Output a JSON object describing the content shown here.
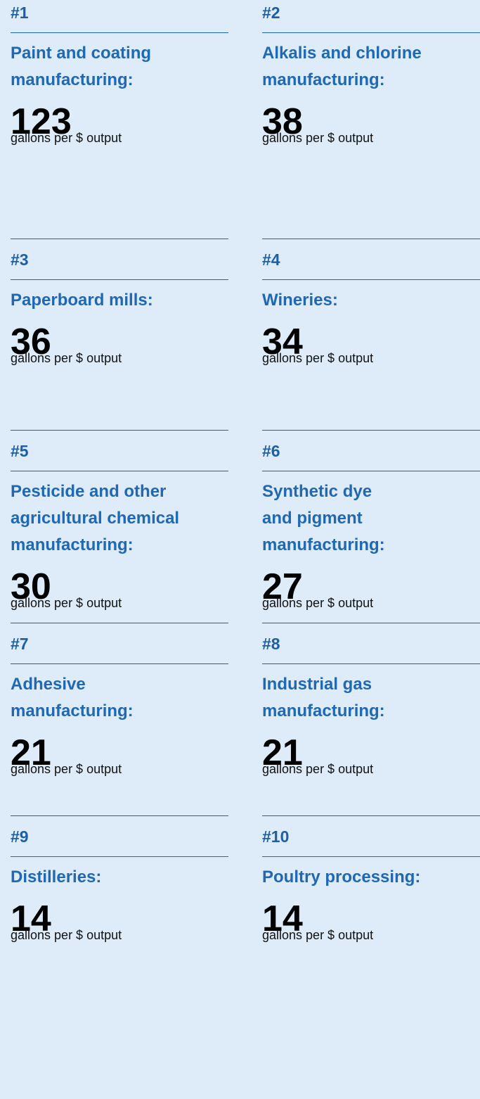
{
  "items": [
    {
      "rank": "#1",
      "title_lines": [
        "Paint and coating",
        "manufacturing:"
      ],
      "value": 123,
      "unit": "gallons per $ output"
    },
    {
      "rank": "#2",
      "title_lines": [
        "Alkalis and chlorine",
        "manufacturing:"
      ],
      "value": 38,
      "unit": "gallons per $ output"
    },
    {
      "rank": "#3",
      "title_lines": [
        "Paperboard mills:"
      ],
      "value": 36,
      "unit": "gallons per $ output"
    },
    {
      "rank": "#4",
      "title_lines": [
        "Wineries:"
      ],
      "value": 34,
      "unit": "gallons per $ output"
    },
    {
      "rank": "#5",
      "title_lines": [
        "Pesticide and other",
        "agricultural chemical",
        "manufacturing:"
      ],
      "value": 30,
      "unit": "gallons per $ output"
    },
    {
      "rank": "#6",
      "title_lines": [
        "Synthetic dye",
        "and pigment",
        "manufacturing:"
      ],
      "value": 27,
      "unit": "gallons per $ output"
    },
    {
      "rank": "#7",
      "title_lines": [
        "Adhesive",
        "manufacturing:"
      ],
      "value": 21,
      "unit": "gallons per $ output"
    },
    {
      "rank": "#8",
      "title_lines": [
        "Industrial gas",
        "manufacturing:"
      ],
      "value": 21,
      "unit": "gallons per $ output"
    },
    {
      "rank": "#9",
      "title_lines": [
        "Distilleries:"
      ],
      "value": 14,
      "unit": "gallons per $ output"
    },
    {
      "rank": "#10",
      "title_lines": [
        "Poultry processing:"
      ],
      "value": 14,
      "unit": "gallons per $ output"
    }
  ]
}
